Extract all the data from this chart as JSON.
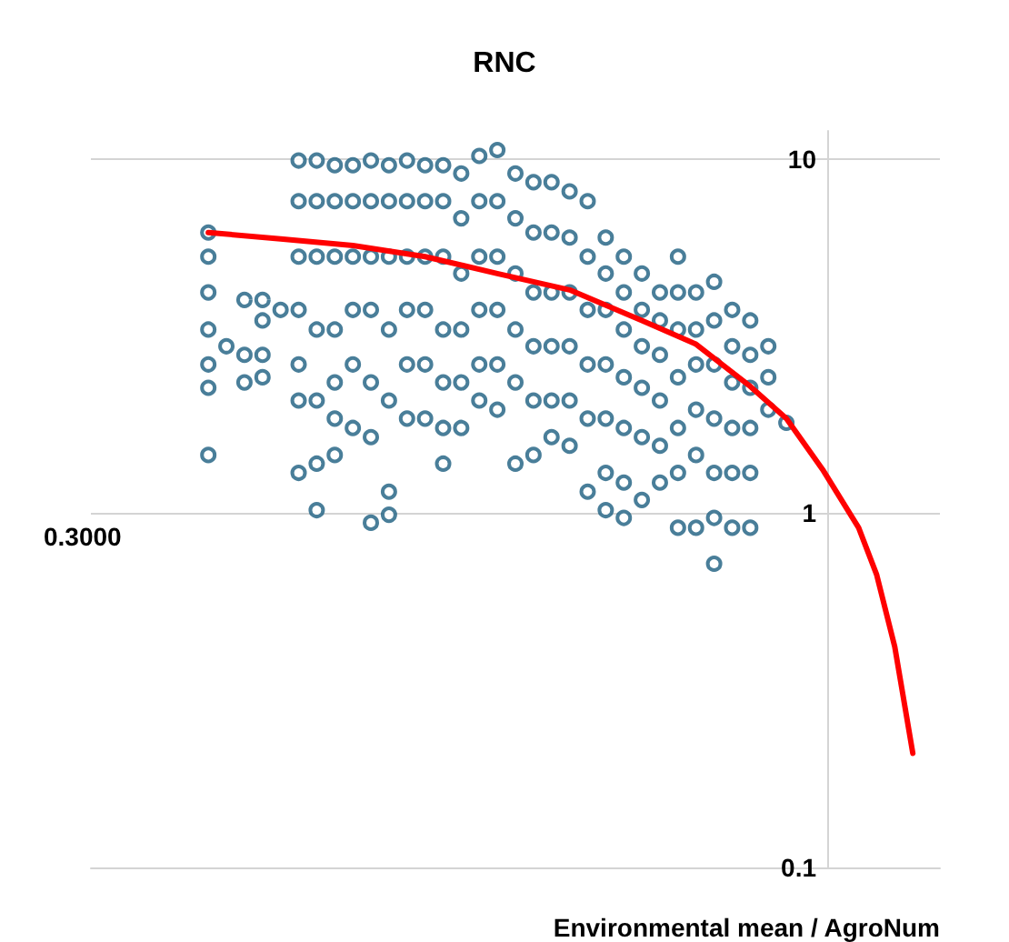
{
  "chart_data": {
    "type": "scatter",
    "title": "RNC",
    "xlabel": "Environmental mean / AgroNum",
    "annotations": [
      "0.3000"
    ],
    "categories": [
      null,
      null,
      null,
      null,
      null,
      null,
      null,
      null,
      null,
      null,
      null,
      null,
      null,
      null,
      null,
      null,
      null,
      null,
      null,
      null,
      null,
      null,
      null,
      null,
      null,
      null,
      null,
      null,
      null,
      null,
      null,
      null,
      null,
      null,
      null,
      null,
      null,
      null,
      null,
      null,
      null,
      null,
      null,
      null,
      null,
      null,
      null
    ],
    "log": "y",
    "ylim": [
      0.1,
      12
    ],
    "yticks": [
      0.1,
      1,
      10
    ],
    "grid": "y",
    "tick_labels": "y",
    "marker": "circle",
    "series": [
      {
        "color": "#1b5e80",
        "values": [
          null,
          null,
          null,
          null,
          null,
          null,
          6.2,
          2.96,
          4.0,
          4.0,
          3.75,
          9.9,
          9.9,
          9.6,
          9.6,
          9.9,
          9.6,
          9.9,
          9.6,
          9.6,
          9.1,
          10.2,
          10.6,
          9.1,
          8.6,
          8.6,
          8.1,
          7.6,
          6.0,
          5.3,
          4.75,
          4.2,
          5.3,
          4.2,
          4.5,
          3.75,
          3.5,
          2.96,
          1.8,
          null,
          null,
          null,
          null,
          null,
          null,
          null,
          null
        ]
      },
      {
        "color": "#1b5e80",
        "values": [
          null,
          null,
          null,
          null,
          null,
          null,
          5.3,
          null,
          2.8,
          3.5,
          null,
          7.6,
          7.6,
          7.6,
          7.6,
          7.6,
          7.6,
          7.6,
          7.6,
          7.6,
          6.8,
          7.6,
          7.6,
          6.8,
          6.2,
          6.2,
          6.0,
          5.3,
          4.75,
          4.2,
          3.75,
          3.5,
          4.2,
          3.3,
          3.5,
          2.96,
          2.8,
          2.42,
          null,
          null,
          null,
          null,
          null,
          null,
          null,
          null,
          null
        ]
      },
      {
        "color": "#1b5e80",
        "values": [
          null,
          null,
          null,
          null,
          null,
          null,
          4.2,
          null,
          2.34,
          2.8,
          null,
          5.3,
          5.3,
          5.3,
          5.3,
          5.3,
          5.3,
          5.3,
          5.3,
          5.3,
          4.75,
          5.3,
          5.3,
          4.75,
          4.2,
          4.2,
          4.2,
          3.75,
          3.75,
          3.3,
          2.96,
          2.8,
          3.3,
          2.63,
          2.63,
          2.34,
          2.26,
          1.96,
          null,
          null,
          null,
          null,
          null,
          null,
          null,
          null,
          null
        ]
      },
      {
        "color": "#1b5e80",
        "values": [
          null,
          null,
          null,
          null,
          null,
          null,
          3.3,
          null,
          null,
          2.42,
          null,
          3.75,
          3.3,
          3.3,
          3.75,
          3.75,
          3.3,
          3.75,
          3.75,
          3.3,
          3.3,
          3.75,
          3.75,
          3.3,
          2.96,
          2.96,
          2.96,
          2.63,
          2.63,
          2.42,
          2.26,
          2.08,
          2.42,
          1.96,
          1.85,
          1.74,
          1.74,
          null,
          null,
          null,
          null,
          null,
          null,
          null,
          null,
          null,
          null
        ]
      },
      {
        "color": "#1b5e80",
        "values": [
          null,
          null,
          null,
          null,
          null,
          null,
          2.63,
          null,
          null,
          null,
          null,
          2.63,
          2.08,
          2.34,
          2.63,
          2.34,
          2.08,
          2.63,
          2.63,
          2.34,
          2.34,
          2.63,
          2.63,
          2.34,
          2.08,
          2.08,
          2.08,
          1.85,
          1.85,
          1.74,
          1.64,
          1.55,
          1.74,
          1.46,
          1.3,
          1.3,
          1.3,
          null,
          null,
          null,
          null,
          null,
          null,
          null,
          null,
          null,
          null
        ]
      },
      {
        "color": "#1b5e80",
        "values": [
          null,
          null,
          null,
          null,
          null,
          null,
          2.26,
          null,
          null,
          null,
          null,
          2.08,
          1.38,
          1.85,
          1.74,
          1.64,
          1.15,
          1.85,
          1.85,
          1.74,
          1.74,
          2.08,
          1.96,
          1.38,
          1.46,
          1.64,
          1.55,
          1.15,
          1.3,
          1.22,
          1.09,
          1.22,
          1.3,
          0.91,
          0.97,
          0.91,
          0.91,
          null,
          null,
          null,
          null,
          null,
          null,
          null,
          null,
          null,
          null
        ]
      },
      {
        "color": "#1b5e80",
        "values": [
          null,
          null,
          null,
          null,
          null,
          null,
          1.46,
          null,
          null,
          null,
          null,
          1.3,
          1.02,
          1.46,
          null,
          0.94,
          0.99,
          null,
          null,
          1.38,
          null,
          null,
          null,
          null,
          null,
          null,
          null,
          null,
          1.02,
          0.97,
          null,
          null,
          0.91,
          null,
          0.72,
          null,
          null,
          null,
          null,
          null,
          null,
          null,
          null,
          null,
          null,
          null,
          null
        ]
      },
      {
        "type": "line",
        "color": "#ff0000",
        "marker": "none",
        "line_style": "solid",
        "values": [
          null,
          null,
          null,
          null,
          null,
          null,
          6.2,
          null,
          null,
          null,
          5.95,
          null,
          null,
          null,
          5.7,
          null,
          null,
          null,
          5.3,
          null,
          null,
          null,
          4.75,
          null,
          null,
          null,
          4.27,
          null,
          null,
          null,
          3.5,
          null,
          null,
          3.0,
          null,
          null,
          2.28,
          null,
          1.85,
          null,
          1.33,
          null,
          0.91,
          0.67,
          0.42,
          0.21,
          null
        ]
      }
    ]
  }
}
